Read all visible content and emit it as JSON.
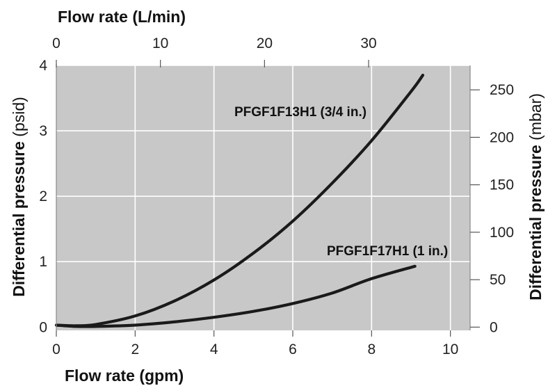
{
  "chart_data": {
    "type": "line",
    "x_bottom": {
      "label": "Flow rate (gpm)",
      "range": [
        0,
        10.5
      ],
      "ticks": [
        0,
        2,
        4,
        6,
        8,
        10
      ]
    },
    "x_top": {
      "label": "Flow rate (L/min)",
      "range": [
        0,
        39.75
      ],
      "ticks": [
        0,
        10,
        20,
        30
      ]
    },
    "y_left": {
      "label_main": "Differential pressure",
      "label_unit": "(psid)",
      "range": [
        -0.05,
        4.0
      ],
      "ticks": [
        0,
        1,
        2,
        3,
        4
      ]
    },
    "y_right": {
      "label_main": "Differential pressure",
      "label_unit": "(mbar)",
      "range": [
        -3.4,
        275.8
      ],
      "ticks": [
        0,
        50,
        100,
        150,
        200,
        250
      ]
    },
    "grid": true,
    "series": [
      {
        "name": "PFGF1F13H1 (3/4 in.)",
        "color": "#1a1a1a",
        "x": [
          0,
          0.5,
          1,
          2,
          3,
          4,
          5,
          6,
          7,
          8,
          9,
          9.3
        ],
        "y": [
          0.03,
          0.02,
          0.04,
          0.17,
          0.4,
          0.72,
          1.13,
          1.62,
          2.2,
          2.85,
          3.6,
          3.85
        ]
      },
      {
        "name": "PFGF1F17H1 (1 in.)",
        "color": "#1a1a1a",
        "x": [
          0,
          0.5,
          1,
          2,
          3,
          4,
          5,
          6,
          7,
          8,
          9.1
        ],
        "y": [
          0.03,
          0.01,
          0.01,
          0.03,
          0.08,
          0.15,
          0.24,
          0.36,
          0.52,
          0.74,
          0.93
        ]
      }
    ]
  },
  "colors": {
    "plot_bg": "#c8c8c8",
    "grid": "#ffffff",
    "line": "#1a1a1a"
  }
}
